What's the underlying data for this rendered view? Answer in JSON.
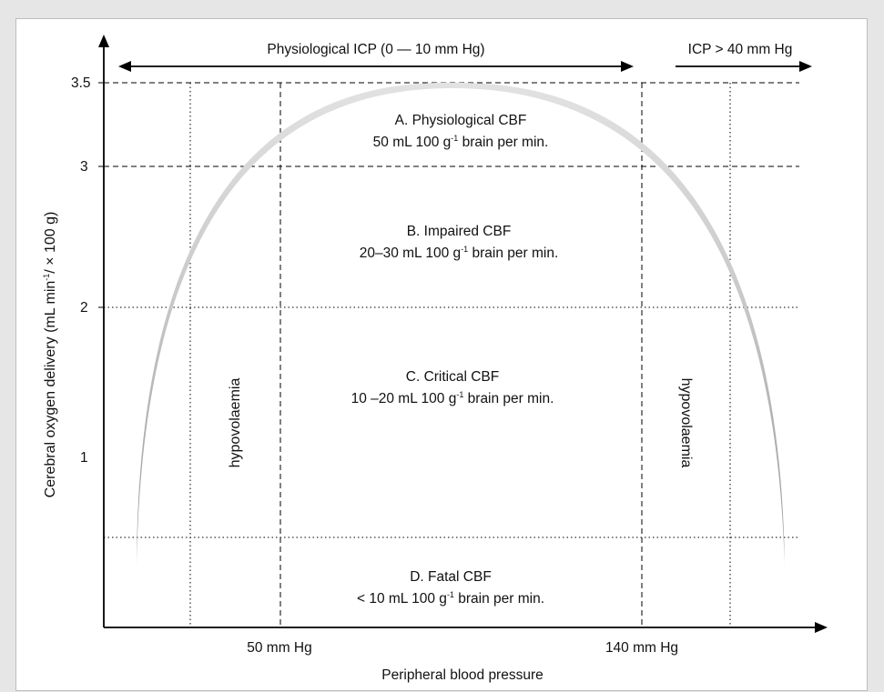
{
  "chart_data": {
    "type": "diagram",
    "xlabel": "Peripheral blood pressure",
    "ylabel": "Cerebral oxygen delivery (mL min⁻¹/ × 100 g)",
    "y_ticks": [
      "3.5",
      "3",
      "2",
      "1"
    ],
    "x_ticks": [
      "50 mm Hg",
      "140 mm Hg"
    ],
    "curve": {
      "shape": "inverted parabola",
      "peak_y": 3.5
    },
    "ranges": [
      {
        "label": "Physiological ICP (0 — 10 mm Hg)",
        "direction": "both"
      },
      {
        "label": "ICP > 40 mm Hg",
        "direction": "right"
      }
    ],
    "side_labels": [
      "hypovolaemia",
      "hypovolaemia"
    ],
    "zones": [
      {
        "title": "Physiological CBF",
        "letter": "A.",
        "line2_value": "50 mL 100 g",
        "line2_rest": " brain per min"
      },
      {
        "title": "Impaired CBF",
        "letter": "B.",
        "line2_value": "20–30 mL 100 g",
        "line2_rest": " brain per min."
      },
      {
        "title": "Critical CBF",
        "letter": "C.",
        "line2_value": "10 –20 mL 100 g",
        "line2_rest": " brain per min"
      },
      {
        "title": "Fatal CBF",
        "letter": "D.",
        "line2_value": "< 10 mL 100 g",
        "line2_rest": " brain per min"
      }
    ],
    "superscript": "-1",
    "trailing_dot": "."
  }
}
